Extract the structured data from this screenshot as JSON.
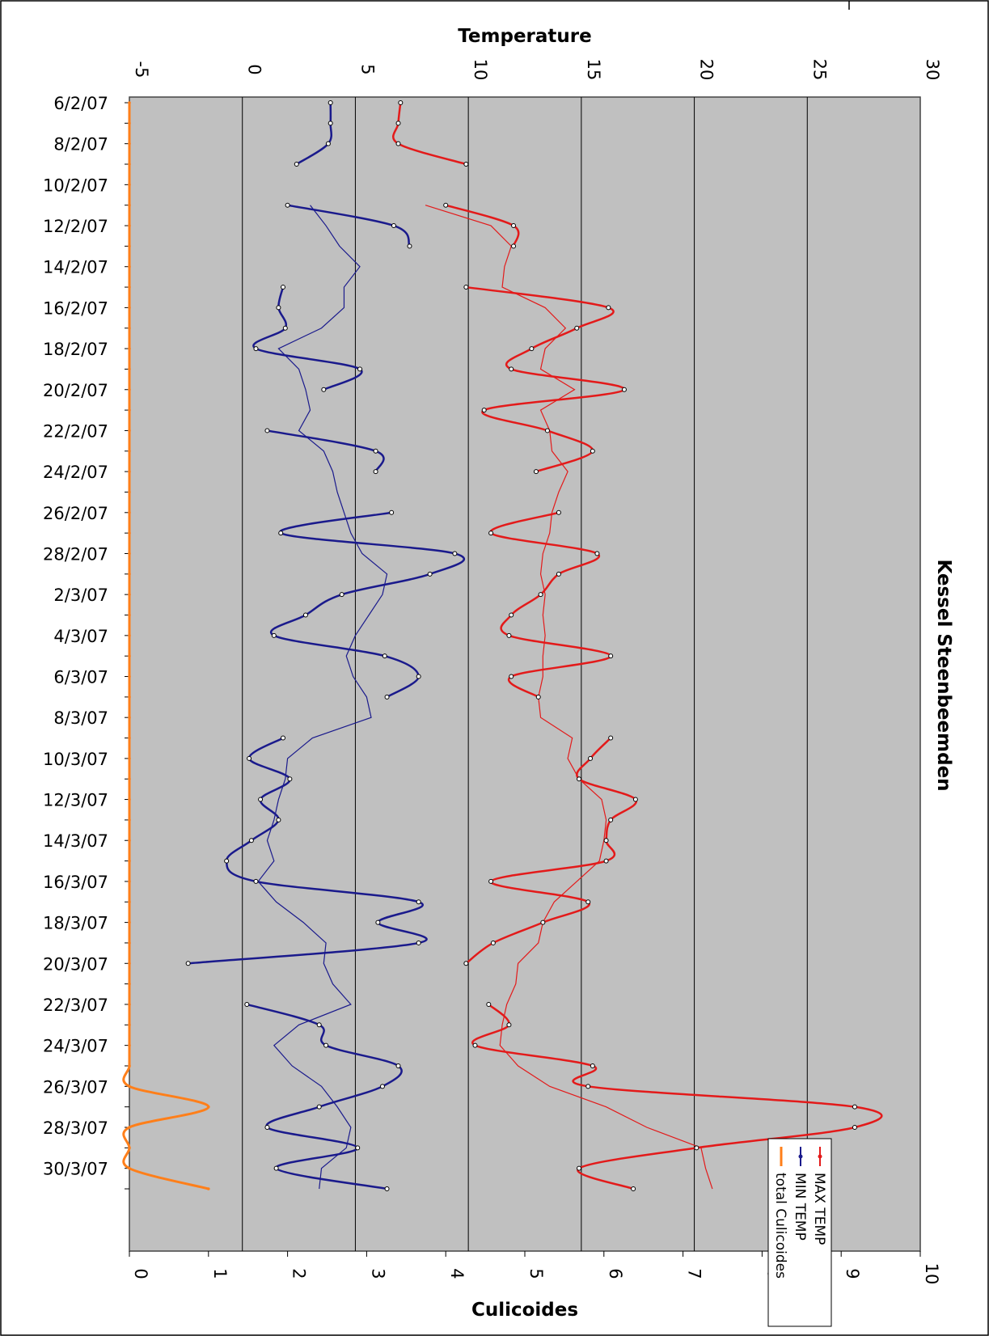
{
  "chart_data": {
    "type": "line",
    "title": "Kessel Steenbeemden",
    "temperature_axis": {
      "label": "Temperature",
      "range": [
        -5,
        30
      ],
      "ticks": [
        -5,
        0,
        5,
        10,
        15,
        20,
        25,
        30
      ]
    },
    "culicoides_axis": {
      "label": "Culicoides",
      "range": [
        0,
        10
      ],
      "ticks": [
        0,
        1,
        2,
        3,
        4,
        5,
        6,
        7,
        8,
        9,
        10
      ]
    },
    "date_labels": [
      "6/2/07",
      "8/2/07",
      "10/2/07",
      "12/2/07",
      "14/2/07",
      "16/2/07",
      "18/2/07",
      "20/2/07",
      "22/2/07",
      "24/2/07",
      "26/2/07",
      "28/2/07",
      "2/3/07",
      "4/3/07",
      "6/3/07",
      "8/3/07",
      "10/3/07",
      "12/3/07",
      "14/3/07",
      "16/3/07",
      "18/3/07",
      "20/3/07",
      "22/3/07",
      "24/3/07",
      "26/3/07",
      "28/3/07",
      "30/3/07"
    ],
    "dates": [
      "6/2/07",
      "7/2/07",
      "8/2/07",
      "9/2/07",
      "10/2/07",
      "11/2/07",
      "12/2/07",
      "13/2/07",
      "14/2/07",
      "15/2/07",
      "16/2/07",
      "17/2/07",
      "18/2/07",
      "19/2/07",
      "20/2/07",
      "21/2/07",
      "22/2/07",
      "23/2/07",
      "24/2/07",
      "25/2/07",
      "26/2/07",
      "27/2/07",
      "28/2/07",
      "1/3/07",
      "2/3/07",
      "3/3/07",
      "4/3/07",
      "5/3/07",
      "6/3/07",
      "7/3/07",
      "8/3/07",
      "9/3/07",
      "10/3/07",
      "11/3/07",
      "12/3/07",
      "13/3/07",
      "14/3/07",
      "15/3/07",
      "16/3/07",
      "17/3/07",
      "18/3/07",
      "19/3/07",
      "20/3/07",
      "21/3/07",
      "22/3/07",
      "23/3/07",
      "24/3/07",
      "25/3/07",
      "26/3/07",
      "27/3/07",
      "28/3/07",
      "29/3/07",
      "30/3/07",
      "31/3/07"
    ],
    "series": [
      {
        "name": "MAX TEMP",
        "color": "#e31a1a",
        "axis": "temperature",
        "values": [
          7.0,
          6.9,
          6.9,
          9.9,
          null,
          9.0,
          12.0,
          12.0,
          null,
          9.9,
          16.2,
          14.8,
          12.8,
          11.9,
          16.9,
          10.7,
          13.5,
          15.5,
          13.0,
          null,
          14.0,
          11.0,
          15.7,
          14.0,
          13.2,
          11.9,
          11.8,
          16.3,
          11.9,
          13.1,
          null,
          16.3,
          15.4,
          14.9,
          17.4,
          16.3,
          16.1,
          16.1,
          11.0,
          15.3,
          13.3,
          11.1,
          9.9,
          null,
          10.9,
          11.8,
          10.3,
          15.5,
          15.3,
          27.1,
          27.1,
          20.1,
          14.9,
          17.3
        ],
        "trend": [
          null,
          null,
          null,
          null,
          null,
          8.1,
          11.0,
          11.9,
          11.6,
          11.5,
          13.4,
          14.3,
          13.4,
          13.2,
          14.7,
          13.2,
          13.6,
          13.7,
          14.4,
          14.0,
          13.7,
          13.6,
          13.3,
          13.2,
          13.4,
          13.3,
          13.4,
          13.3,
          13.3,
          13.1,
          13.2,
          14.6,
          14.4,
          14.9,
          15.9,
          16.1,
          16.0,
          15.8,
          14.8,
          13.8,
          13.3,
          13.1,
          12.2,
          12.1,
          11.7,
          11.5,
          11.4,
          12.2,
          13.6,
          16.1,
          17.9,
          20.3,
          20.5,
          20.8
        ]
      },
      {
        "name": "MIN TEMP",
        "color": "#1a1a8c",
        "axis": "temperature",
        "values": [
          3.9,
          3.9,
          3.8,
          2.4,
          null,
          2.0,
          6.7,
          7.4,
          null,
          1.8,
          1.6,
          1.9,
          0.6,
          5.2,
          3.6,
          null,
          1.1,
          5.9,
          5.9,
          null,
          6.6,
          1.7,
          9.4,
          8.3,
          4.4,
          2.8,
          1.4,
          6.3,
          7.8,
          6.4,
          null,
          1.8,
          0.3,
          2.1,
          0.8,
          1.6,
          0.4,
          -0.7,
          0.6,
          7.8,
          6.0,
          7.8,
          -2.4,
          null,
          0.2,
          3.4,
          3.7,
          6.9,
          6.2,
          3.4,
          1.1,
          5.1,
          1.5,
          6.4
        ],
        "trend": [
          null,
          null,
          null,
          null,
          null,
          3.0,
          3.7,
          4.3,
          5.2,
          4.5,
          4.5,
          3.5,
          1.6,
          2.5,
          2.8,
          3.0,
          2.5,
          3.6,
          4.0,
          4.2,
          4.5,
          4.8,
          5.3,
          6.4,
          6.2,
          5.6,
          5.0,
          4.6,
          4.9,
          5.5,
          5.7,
          3.1,
          2.0,
          1.9,
          1.6,
          1.4,
          1.1,
          1.4,
          0.7,
          1.5,
          2.7,
          3.7,
          3.6,
          4.0,
          4.8,
          2.5,
          1.4,
          2.2,
          3.5,
          4.2,
          4.8,
          4.6,
          3.5,
          3.4
        ]
      },
      {
        "name": "total Culicoides",
        "color": "#ff7f1a",
        "axis": "culicoides",
        "values": [
          0,
          0,
          0,
          0,
          0,
          0,
          0,
          0,
          0,
          0,
          0,
          0,
          0,
          0,
          0,
          0,
          0,
          0,
          0,
          0,
          0,
          0,
          0,
          0,
          0,
          0,
          0,
          0,
          0,
          0,
          0,
          0,
          0,
          0,
          0,
          0,
          0,
          0,
          0,
          0,
          0,
          0,
          0,
          0,
          0,
          0,
          0,
          0,
          0,
          1,
          0,
          0,
          0,
          1
        ]
      }
    ],
    "legend_position": "bottom-right",
    "grid": true
  }
}
